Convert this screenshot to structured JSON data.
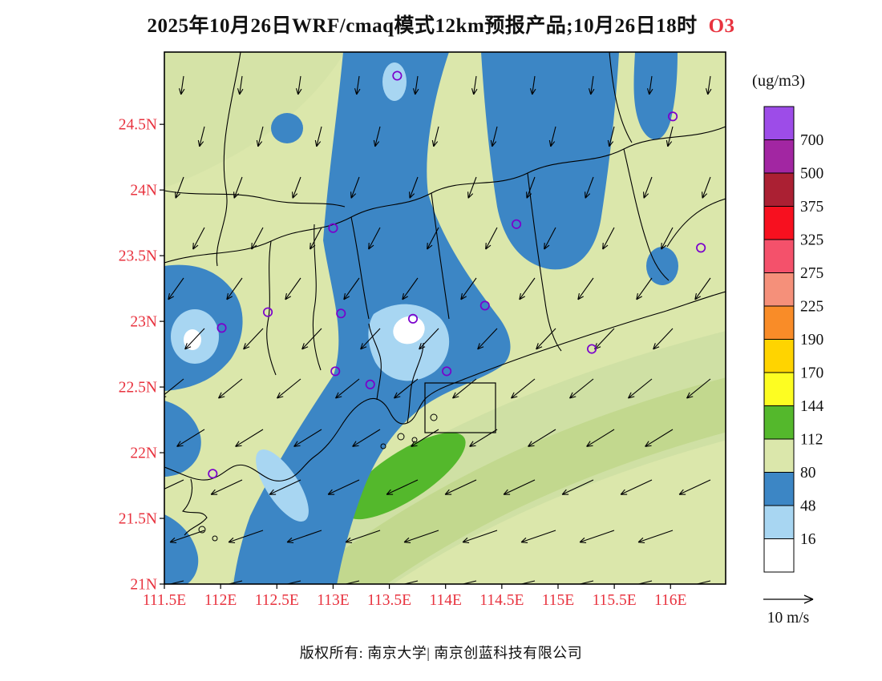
{
  "title": {
    "prefix": "2025年10月26日WRF/cmaq模式12km预报产品;10月26日18时",
    "species": "O3",
    "species_color": "#e8333f"
  },
  "axes": {
    "tick_color": "#e8333f",
    "x_ticks": [
      {
        "label": "111.5E",
        "lon": 111.5
      },
      {
        "label": "112E",
        "lon": 112
      },
      {
        "label": "112.5E",
        "lon": 112.5
      },
      {
        "label": "113E",
        "lon": 113
      },
      {
        "label": "113.5E",
        "lon": 113.5
      },
      {
        "label": "114E",
        "lon": 114
      },
      {
        "label": "114.5E",
        "lon": 114.5
      },
      {
        "label": "115E",
        "lon": 115
      },
      {
        "label": "115.5E",
        "lon": 115.5
      },
      {
        "label": "116E",
        "lon": 116
      }
    ],
    "y_ticks": [
      {
        "label": "24.5N",
        "lat": 24.5
      },
      {
        "label": "24N",
        "lat": 24
      },
      {
        "label": "23.5N",
        "lat": 23.5
      },
      {
        "label": "23N",
        "lat": 23
      },
      {
        "label": "22.5N",
        "lat": 22.5
      },
      {
        "label": "22N",
        "lat": 22
      },
      {
        "label": "21.5N",
        "lat": 21.5
      },
      {
        "label": "21N",
        "lat": 21
      }
    ]
  },
  "legend": {
    "units_label": "(ug/m3)",
    "levels": [
      "700",
      "500",
      "375",
      "325",
      "275",
      "225",
      "190",
      "170",
      "144",
      "112",
      "80",
      "48",
      "16"
    ]
  },
  "wind_scale": {
    "label": "10 m/s"
  },
  "footer": {
    "text": "版权所有: 南京大学| 南京创蓝科技有限公司"
  },
  "chart_data": {
    "type": "heatmap",
    "title": "2025年10月26日WRF/cmaq模式12km预报产品;10月26日18时 O3",
    "variable": "O3",
    "units": "ug/m3",
    "model": "WRF/CMAQ 12km",
    "valid_time": "2025-10-26 18时",
    "lon_range": [
      111.5,
      116.49
    ],
    "lat_range": [
      21.0,
      25.05
    ],
    "contour_levels": [
      16,
      48,
      80,
      112,
      144,
      170,
      190,
      225,
      275,
      325,
      375,
      500,
      700
    ],
    "palette": {
      "colors_top_to_bottom": [
        "#9d4ce8",
        "#a226a2",
        "#ab2033",
        "#f7101f",
        "#f4516b",
        "#f5907a",
        "#f98c28",
        "#ffd400",
        "#fdfd22",
        "#54b82c",
        "#dbe7ab",
        "#3c86c5",
        "#a8d6f2",
        "#ffffff"
      ],
      "se_shade_outer": "#cfe0a4",
      "se_shade_inner": "#c2d88e"
    },
    "observed_range_on_map": "<16 to ~144 ug/m3",
    "features": {
      "low_o3_band": "O3 < 80 ug/m3 (blue) in a NW-SE band through the Pearl River Delta (~113-114E) reaching the south coast, over the NE sector (114-115.3E north of 23.3N), and a western patch near 111.5-112.3E / 22.3-23.2N; minima <16 ug/m3 (white) near 113.6E, 22.9N",
      "high_o3_area": "112-144 ug/m3 (green) patch offshore ~113.1-113.9E, 21.6-22.2N within a broader 80-112 ug/m3 background"
    },
    "stations_lonlat": [
      [
        113.57,
        24.87
      ],
      [
        116.02,
        24.56
      ],
      [
        113.0,
        23.71
      ],
      [
        114.63,
        23.74
      ],
      [
        116.27,
        23.56
      ],
      [
        112.42,
        23.07
      ],
      [
        113.07,
        23.06
      ],
      [
        113.71,
        23.02
      ],
      [
        114.35,
        23.12
      ],
      [
        112.01,
        22.95
      ],
      [
        115.3,
        22.79
      ],
      [
        113.02,
        22.62
      ],
      [
        113.33,
        22.52
      ],
      [
        114.01,
        22.62
      ],
      [
        111.93,
        21.84
      ]
    ],
    "wind_field": {
      "description": "northeasterly flow: long WSW-pointing arrows over the SE/offshore area, weaker southward-pointing arrows inland to the north",
      "reference_speed": "10 m/s"
    }
  }
}
